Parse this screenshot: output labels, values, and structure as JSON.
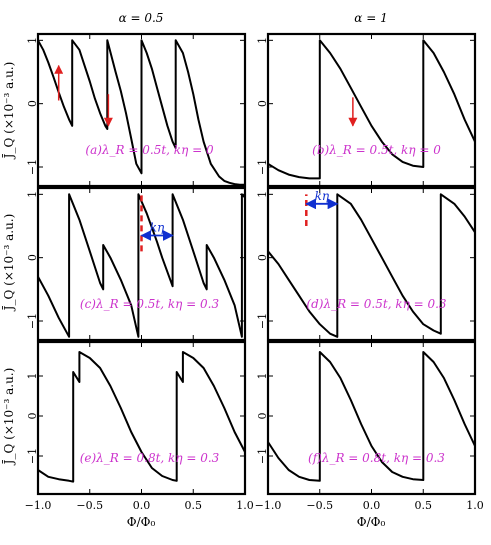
{
  "figure": {
    "column_titles": [
      "α = 0.5",
      "α = 1"
    ],
    "xlabel": "Φ/Φ₀",
    "ylabel": "J̄_Q (×10⁻³ a.u.)"
  },
  "chart_data": [
    {
      "type": "line",
      "panel": "a",
      "col": 0,
      "row": 0,
      "annotation": "(a)λ_R = 0.5t, kη = 0",
      "xlim": [
        -1,
        1
      ],
      "ylim": [
        -1.3,
        1.1
      ],
      "xticks": [
        -1.0,
        -0.5,
        0.0,
        0.5,
        1.0
      ],
      "yticks": [
        -1,
        0,
        1
      ],
      "ytick_labels": [
        "−1",
        "0",
        "1"
      ],
      "grid": false,
      "series": [
        {
          "x": [
            -1.0,
            -0.95,
            -0.9,
            -0.85,
            -0.8,
            -0.75,
            -0.7,
            -0.67,
            -0.67,
            -0.6,
            -0.55,
            -0.5,
            -0.45,
            -0.4,
            -0.35,
            -0.33,
            -0.33,
            -0.25,
            -0.2,
            -0.15,
            -0.1,
            -0.05,
            0.0,
            0.0,
            0.05,
            0.1,
            0.15,
            0.2,
            0.25,
            0.3,
            0.33,
            0.33,
            0.4,
            0.45,
            0.5,
            0.55,
            0.6,
            0.67,
            0.67,
            0.75,
            0.8,
            0.85,
            0.9,
            0.95,
            1.0
          ],
          "y": [
            1.0,
            0.85,
            0.65,
            0.42,
            0.18,
            -0.05,
            -0.25,
            -0.35,
            1.0,
            0.85,
            0.6,
            0.35,
            0.08,
            -0.15,
            -0.35,
            -0.4,
            1.0,
            0.5,
            0.2,
            -0.15,
            -0.55,
            -0.95,
            -1.1,
            1.0,
            0.8,
            0.55,
            0.25,
            -0.05,
            -0.35,
            -0.6,
            -0.7,
            1.0,
            0.8,
            0.5,
            0.15,
            -0.25,
            -0.6,
            -0.95,
            -0.95,
            -1.15,
            -1.22,
            -1.25,
            -1.27,
            -1.28,
            -1.28
          ]
        }
      ],
      "markers": [
        {
          "kind": "arrow-up",
          "x": -0.8,
          "y_from": 0.05,
          "y_to": 0.6
        },
        {
          "kind": "arrow-down",
          "x": -0.32,
          "y_from": 0.15,
          "y_to": -0.35
        }
      ]
    },
    {
      "type": "line",
      "panel": "b",
      "col": 1,
      "row": 0,
      "annotation": "(b)λ_R = 0.5t, kη = 0",
      "xlim": [
        -1,
        1
      ],
      "ylim": [
        -1.3,
        1.1
      ],
      "xticks": [
        -1.0,
        -0.5,
        0.0,
        0.5,
        1.0
      ],
      "yticks": [
        -1,
        0,
        1
      ],
      "grid": false,
      "series": [
        {
          "x": [
            -1.0,
            -0.9,
            -0.8,
            -0.7,
            -0.6,
            -0.5,
            -0.5,
            -0.4,
            -0.3,
            -0.2,
            -0.1,
            0.0,
            0.1,
            0.2,
            0.3,
            0.4,
            0.5,
            0.5,
            0.6,
            0.7,
            0.8,
            0.9,
            1.0
          ],
          "y": [
            -0.95,
            -1.05,
            -1.12,
            -1.16,
            -1.18,
            -1.18,
            1.0,
            0.8,
            0.55,
            0.25,
            -0.05,
            -0.35,
            -0.6,
            -0.8,
            -0.92,
            -0.98,
            -1.0,
            1.0,
            0.8,
            0.5,
            0.15,
            -0.25,
            -0.6
          ]
        }
      ],
      "markers": [
        {
          "kind": "arrow-down",
          "x": -0.18,
          "y_from": 0.1,
          "y_to": -0.35
        }
      ]
    },
    {
      "type": "line",
      "panel": "c",
      "col": 0,
      "row": 1,
      "annotation": "(c)λ_R = 0.5t, kη = 0.3",
      "xlim": [
        -1,
        1
      ],
      "ylim": [
        -1.3,
        1.1
      ],
      "xticks": [
        -1.0,
        -0.5,
        0.0,
        0.5,
        1.0
      ],
      "yticks": [
        -1,
        0,
        1
      ],
      "grid": false,
      "series": [
        {
          "x": [
            -1.0,
            -0.9,
            -0.8,
            -0.7,
            -0.7,
            -0.6,
            -0.5,
            -0.4,
            -0.37,
            -0.37,
            -0.3,
            -0.2,
            -0.1,
            -0.03,
            -0.03,
            0.05,
            0.15,
            0.2,
            0.3,
            0.3,
            0.4,
            0.5,
            0.6,
            0.63,
            0.63,
            0.7,
            0.8,
            0.9,
            0.97,
            0.97,
            1.0
          ],
          "y": [
            -0.3,
            -0.6,
            -0.95,
            -1.25,
            1.0,
            0.6,
            0.1,
            -0.4,
            -0.5,
            0.2,
            0.0,
            -0.35,
            -0.75,
            -1.25,
            1.0,
            0.7,
            0.25,
            0.0,
            -0.45,
            1.0,
            0.6,
            0.1,
            -0.4,
            -0.5,
            0.2,
            0.0,
            -0.35,
            -0.75,
            -1.25,
            1.0,
            0.95
          ]
        }
      ],
      "markers": [
        {
          "kind": "dashed-vline",
          "x": 0.0,
          "y_from": 0.1,
          "y_to": 1.0
        },
        {
          "kind": "double-arrow",
          "y": 0.35,
          "x_from": 0.0,
          "x_to": 0.3,
          "label": "kη"
        }
      ]
    },
    {
      "type": "line",
      "panel": "d",
      "col": 1,
      "row": 1,
      "annotation": "(d)λ_R = 0.5t, kη = 0.3",
      "xlim": [
        -1,
        1
      ],
      "ylim": [
        -1.3,
        1.1
      ],
      "xticks": [
        -1.0,
        -0.5,
        0.0,
        0.5,
        1.0
      ],
      "yticks": [
        -1,
        0,
        1
      ],
      "grid": false,
      "series": [
        {
          "x": [
            -1.0,
            -0.9,
            -0.8,
            -0.7,
            -0.6,
            -0.5,
            -0.4,
            -0.33,
            -0.33,
            -0.2,
            -0.1,
            0.0,
            0.1,
            0.2,
            0.3,
            0.4,
            0.5,
            0.6,
            0.67,
            0.67,
            0.8,
            0.9,
            1.0
          ],
          "y": [
            0.1,
            -0.1,
            -0.35,
            -0.6,
            -0.85,
            -1.05,
            -1.2,
            -1.25,
            1.0,
            0.85,
            0.6,
            0.3,
            0.0,
            -0.3,
            -0.6,
            -0.85,
            -1.05,
            -1.15,
            -1.2,
            1.0,
            0.85,
            0.65,
            0.4
          ]
        }
      ],
      "markers": [
        {
          "kind": "dashed-vline",
          "x": -0.63,
          "y_from": 0.5,
          "y_to": 1.0
        },
        {
          "kind": "double-arrow",
          "y": 0.85,
          "x_from": -0.63,
          "x_to": -0.33,
          "label": "kη"
        }
      ]
    },
    {
      "type": "line",
      "panel": "e",
      "col": 0,
      "row": 2,
      "annotation": "(e)λ_R = 0.8t, kη = 0.3",
      "xlim": [
        -1,
        1
      ],
      "ylim": [
        -1.95,
        1.85
      ],
      "xticks": [
        -1.0,
        -0.5,
        0.0,
        0.5,
        1.0
      ],
      "yticks": [
        -1,
        0,
        1
      ],
      "xtick_labels": [
        "−1.0",
        "−0.5",
        "0.0",
        "0.5",
        "1.0"
      ],
      "grid": false,
      "series": [
        {
          "x": [
            -1.0,
            -0.9,
            -0.8,
            -0.7,
            -0.66,
            -0.66,
            -0.6,
            -0.6,
            -0.5,
            -0.4,
            -0.3,
            -0.2,
            -0.1,
            0.0,
            0.1,
            0.2,
            0.3,
            0.34,
            0.34,
            0.4,
            0.4,
            0.5,
            0.6,
            0.7,
            0.8,
            0.9,
            1.0
          ],
          "y": [
            -1.35,
            -1.52,
            -1.58,
            -1.62,
            -1.64,
            1.1,
            0.85,
            1.6,
            1.45,
            1.2,
            0.75,
            0.2,
            -0.4,
            -0.9,
            -1.3,
            -1.5,
            -1.6,
            -1.62,
            1.1,
            0.85,
            1.6,
            1.45,
            1.2,
            0.75,
            0.2,
            -0.4,
            -0.9
          ]
        }
      ]
    },
    {
      "type": "line",
      "panel": "f",
      "col": 1,
      "row": 2,
      "annotation": "(f)λ_R = 0.8t, kη = 0.3",
      "xlim": [
        -1,
        1
      ],
      "ylim": [
        -1.95,
        1.85
      ],
      "xticks": [
        -1.0,
        -0.5,
        0.0,
        0.5,
        1.0
      ],
      "yticks": [
        -1,
        0,
        1
      ],
      "xtick_labels": [
        "−1.0",
        "−0.5",
        "0.0",
        "0.5",
        "1.0"
      ],
      "grid": false,
      "series": [
        {
          "x": [
            -1.0,
            -0.9,
            -0.8,
            -0.7,
            -0.6,
            -0.5,
            -0.5,
            -0.4,
            -0.3,
            -0.2,
            -0.1,
            0.0,
            0.1,
            0.2,
            0.3,
            0.4,
            0.5,
            0.5,
            0.6,
            0.7,
            0.8,
            0.9,
            1.0
          ],
          "y": [
            -0.65,
            -1.05,
            -1.35,
            -1.52,
            -1.6,
            -1.62,
            1.6,
            1.35,
            0.95,
            0.4,
            -0.2,
            -0.75,
            -1.15,
            -1.4,
            -1.52,
            -1.58,
            -1.6,
            1.6,
            1.35,
            0.95,
            0.4,
            -0.2,
            -0.75
          ]
        }
      ]
    }
  ]
}
